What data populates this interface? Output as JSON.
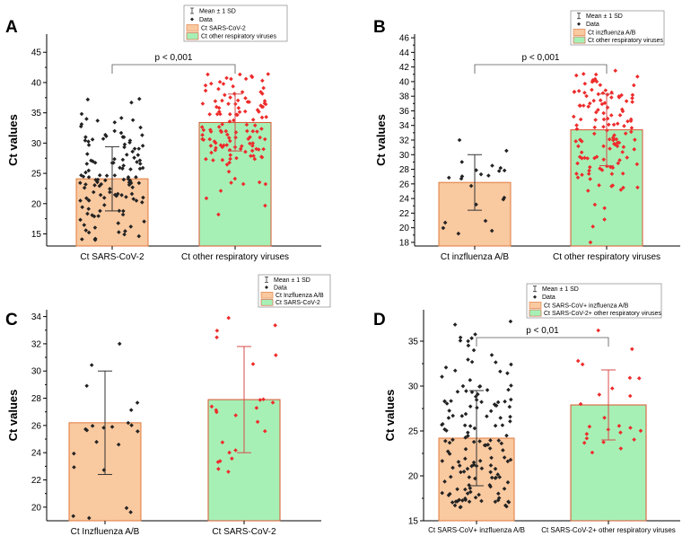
{
  "colors": {
    "bar_orange": "#f9c9a0",
    "bar_orange_edge": "#e07a3c",
    "bar_green": "#a6f0b6",
    "bar_green_edge": "#d9532e",
    "dot_black": "#222222",
    "dot_red": "#ee2b2b",
    "err_black": "#333333",
    "err_red": "#d84a4a"
  },
  "chart_data": [
    {
      "panel": "A",
      "type": "bar",
      "ylabel": "Ct values",
      "ylim": [
        13,
        48
      ],
      "yticks": [
        15,
        20,
        25,
        30,
        35,
        40,
        45
      ],
      "categories": [
        "Ct SARS-CoV-2",
        "Ct other respiratory viruses"
      ],
      "values": [
        24.1,
        33.4
      ],
      "sd": [
        5.3,
        4.7
      ],
      "pvalue": "p < 0,001",
      "legend": {
        "mean_label": "Mean ± 1 SD",
        "data_label": "Data",
        "series": [
          "Ct SARS-CoV-2",
          "Ct other respiratory viruses"
        ]
      },
      "points": [
        {
          "n": 128,
          "min": 14.0,
          "max": 37.3,
          "seed": 11
        },
        {
          "n": 130,
          "min": 18.2,
          "max": 41.4,
          "seed": 23
        }
      ]
    },
    {
      "panel": "B",
      "type": "bar",
      "ylabel": "Ct values",
      "ylim": [
        17.5,
        46.5
      ],
      "yticks": [
        18,
        20,
        22,
        24,
        26,
        28,
        30,
        32,
        34,
        36,
        38,
        40,
        42,
        44,
        46
      ],
      "categories": [
        "Ct inzfluenza A/B",
        "Ct other respiratory viruses"
      ],
      "values": [
        26.2,
        33.4
      ],
      "sd": [
        3.8,
        4.9
      ],
      "pvalue": "p < 0,001",
      "legend": {
        "mean_label": "Mean ± 1 SD",
        "data_label": "Data",
        "series": [
          "Ct inzfluenza A/B",
          "Ct other respiratory viruses"
        ]
      },
      "points": [
        {
          "n": 22,
          "min": 19.2,
          "max": 32.0,
          "seed": 37
        },
        {
          "n": 130,
          "min": 18.0,
          "max": 41.5,
          "seed": 41
        }
      ]
    },
    {
      "panel": "C",
      "type": "bar",
      "ylabel": "Ct values",
      "ylim": [
        19,
        34.5
      ],
      "yticks": [
        20,
        22,
        24,
        26,
        28,
        30,
        32,
        34
      ],
      "categories": [
        "Ct Inzfluenza A/B",
        "Ct SARS-CoV-2"
      ],
      "values": [
        26.2,
        27.9
      ],
      "sd": [
        3.8,
        3.9
      ],
      "pvalue": "",
      "legend": {
        "mean_label": "Mean ± 1 SD",
        "data_label": "Data",
        "series": [
          "Ct Inzfluenza A/B",
          "Ct SARS-CoV-2"
        ]
      },
      "points": [
        {
          "n": 22,
          "min": 19.2,
          "max": 32.0,
          "seed": 53
        },
        {
          "n": 24,
          "min": 22.6,
          "max": 33.9,
          "seed": 59
        }
      ]
    },
    {
      "panel": "D",
      "type": "bar",
      "ylabel": "Ct values",
      "ylim": [
        15,
        38.5
      ],
      "yticks": [
        15,
        20,
        25,
        30,
        35
      ],
      "categories": [
        "Ct SARS-CoV+ inzfluenza A/B",
        "Ct SARS-CoV-2+ other respiratory viruses"
      ],
      "values": [
        24.2,
        27.9
      ],
      "sd": [
        5.3,
        3.9
      ],
      "pvalue": "p < 0,01",
      "legend": {
        "mean_label": "Mean ± 1 SD",
        "data_label": "Data",
        "series": [
          "Ct SARS-CoV+ inzfluenza A/B",
          "Ct SARS-CoV-2+ other respiratory viruses"
        ]
      },
      "points": [
        {
          "n": 150,
          "min": 16.5,
          "max": 37.2,
          "seed": 67
        },
        {
          "n": 24,
          "min": 22.6,
          "max": 36.2,
          "seed": 71
        }
      ]
    }
  ]
}
